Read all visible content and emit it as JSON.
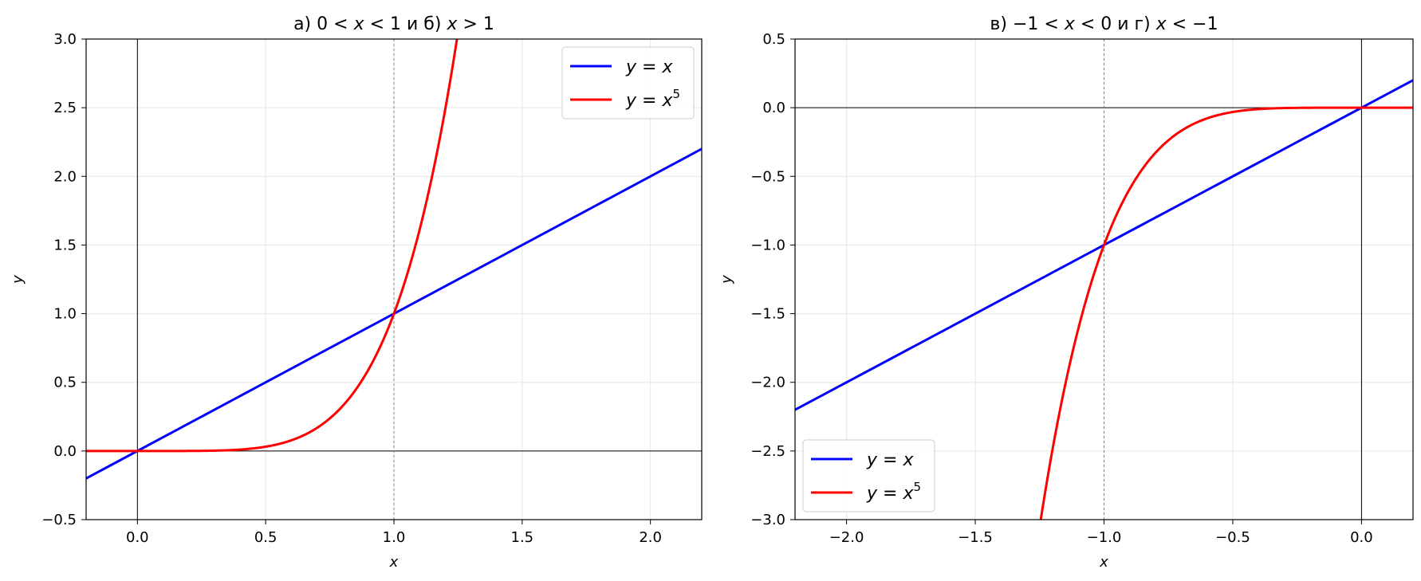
{
  "colors": {
    "line": "#0000ff",
    "power": "#ff0000",
    "grid": "#e6e6e6",
    "axis": "#000000",
    "guide": "#808080"
  },
  "chart_data": [
    {
      "type": "line",
      "title_parts": [
        "а) 0 < ",
        "x",
        " < 1 и б) ",
        "x",
        " > 1"
      ],
      "xlabel": "x",
      "ylabel": "y",
      "xlim": [
        -0.2,
        2.2
      ],
      "ylim": [
        -0.5,
        3.0
      ],
      "xticks": [
        0.0,
        0.5,
        1.0,
        1.5,
        2.0
      ],
      "xtick_labels": [
        "0.0",
        "0.5",
        "1.0",
        "1.5",
        "2.0"
      ],
      "yticks": [
        -0.5,
        0.0,
        0.5,
        1.0,
        1.5,
        2.0,
        2.5,
        3.0
      ],
      "ytick_labels": [
        "−0.5",
        "0.0",
        "0.5",
        "1.0",
        "1.5",
        "2.0",
        "2.5",
        "3.0"
      ],
      "grid": true,
      "reference_lines": {
        "x_axis_at": 0,
        "y_axis_at": 0,
        "dashed_vertical_at": 1.0
      },
      "legend_position": "top-right",
      "series": [
        {
          "legend": [
            "y = x",
            ""
          ],
          "function": "y = x",
          "color": "#0000ff",
          "x": [
            -0.2,
            2.2
          ],
          "y": [
            -0.2,
            2.2
          ]
        },
        {
          "legend": [
            "y = x",
            "5"
          ],
          "function": "y = x^5",
          "color": "#ff0000",
          "x": [
            -0.2,
            0,
            0.5,
            0.75,
            1.0,
            1.1,
            1.2,
            1.246
          ],
          "y": [
            -0.00032,
            0,
            0.03125,
            0.2373,
            1.0,
            1.6105,
            2.4883,
            3.0
          ]
        }
      ]
    },
    {
      "type": "line",
      "title_parts": [
        "в) −1 < ",
        "x",
        " < 0 и г) ",
        "x",
        " < −1"
      ],
      "xlabel": "x",
      "ylabel": "y",
      "xlim": [
        -2.2,
        0.2
      ],
      "ylim": [
        -3.0,
        0.5
      ],
      "xticks": [
        -2.0,
        -1.5,
        -1.0,
        -0.5,
        0.0
      ],
      "xtick_labels": [
        "−2.0",
        "−1.5",
        "−1.0",
        "−0.5",
        "0.0"
      ],
      "yticks": [
        -3.0,
        -2.5,
        -2.0,
        -1.5,
        -1.0,
        -0.5,
        0.0,
        0.5
      ],
      "ytick_labels": [
        "−3.0",
        "−2.5",
        "−2.0",
        "−1.5",
        "−1.0",
        "−0.5",
        "0.0",
        "0.5"
      ],
      "grid": true,
      "reference_lines": {
        "x_axis_at": 0,
        "y_axis_at": 0,
        "dashed_vertical_at": -1.0
      },
      "legend_position": "bottom-left",
      "series": [
        {
          "legend": [
            "y = x",
            ""
          ],
          "function": "y = x",
          "color": "#0000ff",
          "x": [
            -2.2,
            0.2
          ],
          "y": [
            -2.2,
            0.2
          ]
        },
        {
          "legend": [
            "y = x",
            "5"
          ],
          "function": "y = x^5",
          "color": "#ff0000",
          "x": [
            -1.246,
            -1.2,
            -1.1,
            -1.0,
            -0.75,
            -0.5,
            0,
            0.2
          ],
          "y": [
            -3.0,
            -2.4883,
            -1.6105,
            -1.0,
            -0.2373,
            -0.03125,
            0,
            0.00032
          ]
        }
      ]
    }
  ]
}
